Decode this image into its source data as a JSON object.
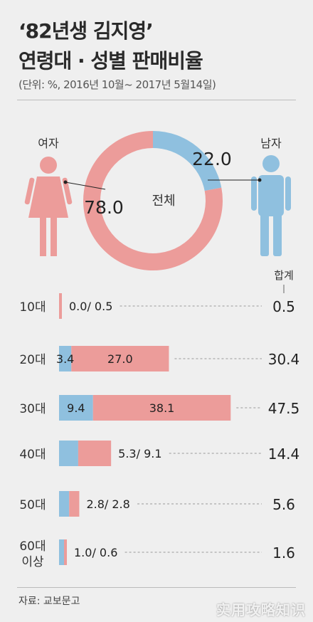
{
  "header": {
    "title_line1": "‘82년생 김지영’",
    "title_line2": "연령대 · 성별 판매비율",
    "unit": "(단위: %, 2016년 10월~ 2017년 5월14일)"
  },
  "footer": {
    "source": "자료: 교보문고",
    "watermark": "实用攻略知识"
  },
  "colors": {
    "female": "#ec9c9a",
    "male": "#8fc0df",
    "text": "#222222",
    "dash": "#9a9a9a"
  },
  "chart_data": [
    {
      "type": "pie",
      "donut": true,
      "center_label": "전체",
      "slices": [
        {
          "name": "여자",
          "value": 78.0,
          "label": "78.0"
        },
        {
          "name": "남자",
          "value": 22.0,
          "label": "22.0"
        }
      ]
    },
    {
      "type": "bar",
      "orientation": "horizontal",
      "stacked": true,
      "total_header": "합계",
      "categories": [
        "10대",
        "20대",
        "30대",
        "40대",
        "50대",
        "60대 이상"
      ],
      "series": [
        {
          "name": "남자",
          "values": [
            0.0,
            3.4,
            9.4,
            5.3,
            2.8,
            1.0
          ]
        },
        {
          "name": "여자",
          "values": [
            0.5,
            27.0,
            38.1,
            9.1,
            2.8,
            0.6
          ]
        }
      ],
      "totals": [
        0.5,
        30.4,
        47.5,
        14.4,
        5.6,
        1.6
      ],
      "value_labels": [
        "0.0/ 0.5",
        "",
        "",
        "5.3/ 9.1",
        "2.8/ 2.8",
        "1.0/ 0.6"
      ],
      "total_labels": [
        "0.5",
        "30.4",
        "47.5",
        "14.4",
        "5.6",
        "1.6"
      ],
      "inside_labels": [
        {
          "male": "",
          "female": ""
        },
        {
          "male": "3.4",
          "female": "27.0"
        },
        {
          "male": "9.4",
          "female": "38.1"
        },
        {
          "male": "",
          "female": ""
        },
        {
          "male": "",
          "female": ""
        },
        {
          "male": "",
          "female": ""
        }
      ],
      "category_lines": [
        [
          "10대"
        ],
        [
          "20대"
        ],
        [
          "30대"
        ],
        [
          "40대"
        ],
        [
          "50대"
        ],
        [
          "60대",
          "이상"
        ]
      ]
    }
  ]
}
